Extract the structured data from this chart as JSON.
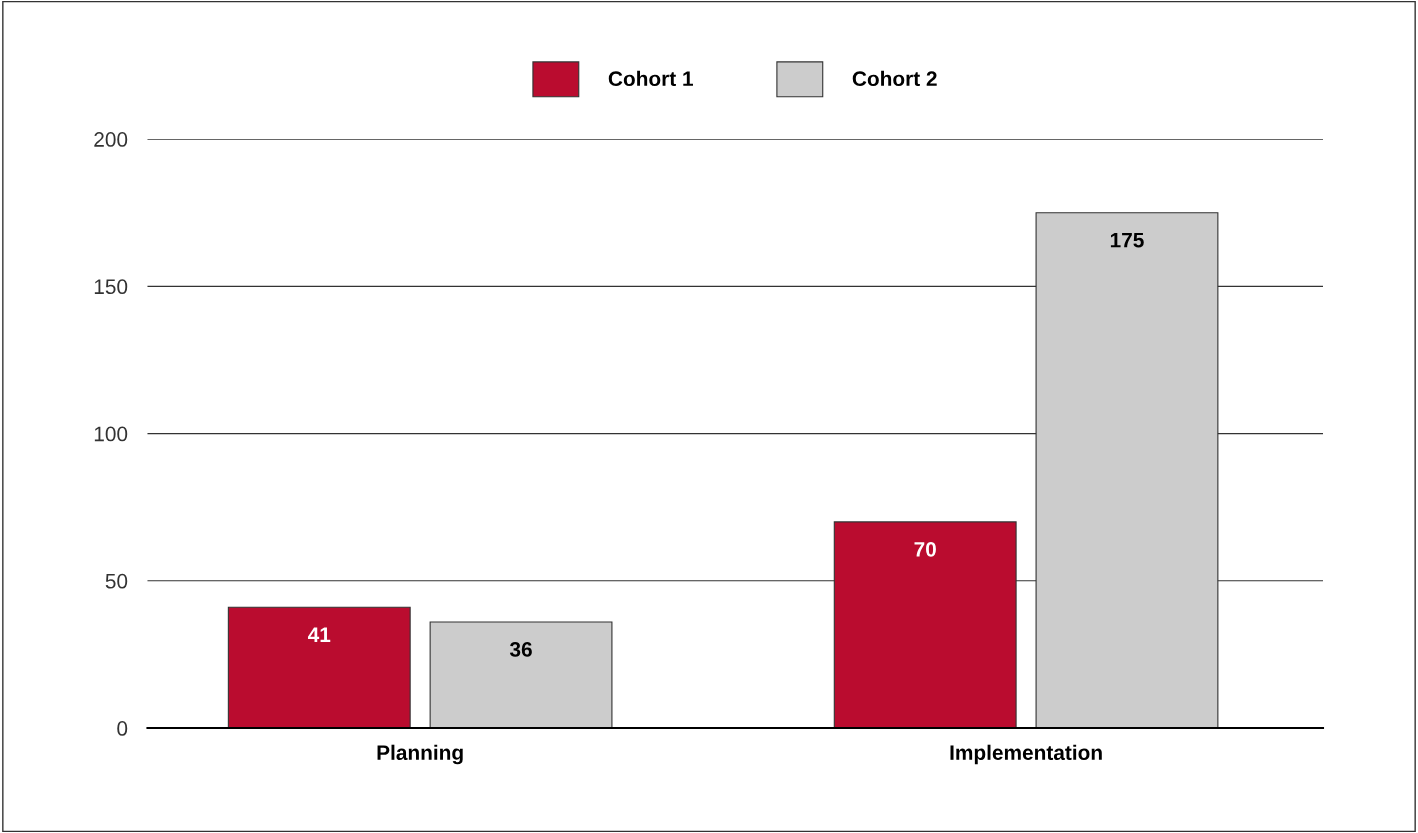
{
  "chart_data": {
    "type": "bar",
    "categories": [
      "Planning",
      "Implementation"
    ],
    "series": [
      {
        "name": "Cohort 1",
        "color": "#ba0c2f",
        "values": [
          41,
          70
        ]
      },
      {
        "name": "Cohort 2",
        "color": "#cccccc",
        "values": [
          36,
          175
        ]
      }
    ],
    "ylim": [
      0,
      200
    ],
    "yticks": [
      0,
      50,
      100,
      150,
      200
    ],
    "grid": "y",
    "legend": "top",
    "data_labels": true
  }
}
